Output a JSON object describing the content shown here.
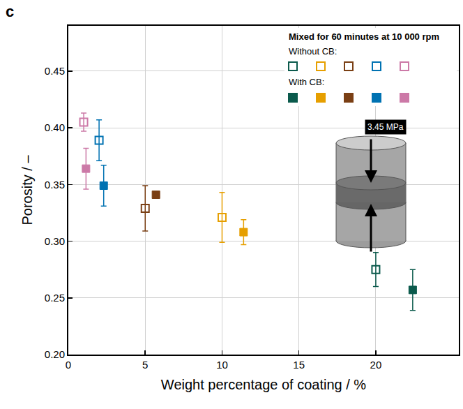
{
  "chart_data": {
    "type": "scatter",
    "title": "c",
    "legend_title": "Mixed for 60 minutes at 10 000 rpm",
    "x_label": "Weight percentage of coating / %",
    "y_label": "Porosity / –",
    "xlim": [
      0,
      25.4
    ],
    "xticks": [
      0,
      5,
      10,
      15,
      20
    ],
    "ylim": [
      0.2,
      0.49
    ],
    "yticks": [
      {
        "value": 0.2,
        "label": "0.20"
      },
      {
        "value": 0.25,
        "label": "0.25"
      },
      {
        "value": 0.3,
        "label": "0.30"
      },
      {
        "value": 0.35,
        "label": "0.35"
      },
      {
        "value": 0.4,
        "label": "0.40"
      },
      {
        "value": 0.45,
        "label": "0.45"
      }
    ],
    "grid": true,
    "legend": "top right",
    "annotations": [
      {
        "text": "3.45 MPa"
      }
    ],
    "series": [
      {
        "name": "Without CB:",
        "marker": "square-open",
        "colors": [
          "#0b5a4c",
          "#e69f00",
          "#7a3f14",
          "#0072b2",
          "#cc79a7"
        ],
        "x": [
          20,
          10,
          5,
          2,
          1
        ],
        "values": [
          0.275,
          0.321,
          0.329,
          0.389,
          0.405
        ],
        "errors": [
          0.015,
          0.022,
          0.02,
          0.018,
          0.008
        ]
      },
      {
        "name": "With CB:",
        "marker": "square",
        "colors": [
          "#0b5a4c",
          "#e69f00",
          "#7a3f14",
          "#0072b2",
          "#cc79a7"
        ],
        "x": [
          22.4,
          11.4,
          5.7,
          2.3,
          1.15
        ],
        "values": [
          0.257,
          0.308,
          0.341,
          0.349,
          0.364
        ],
        "errors": [
          0.018,
          0.011,
          0.003,
          0.018,
          0.018
        ]
      }
    ]
  }
}
